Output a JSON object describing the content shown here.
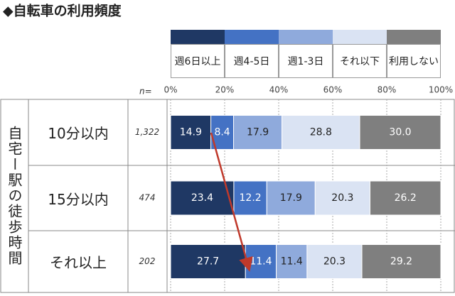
{
  "chart_data": {
    "type": "stacked_barh",
    "title": "◆自転車の利用頻度",
    "axis_group_label": "自宅ー駅の徒歩時間",
    "n_label": "n=",
    "categories": [
      "10分以内",
      "15分以内",
      "それ以上"
    ],
    "sample_sizes": [
      "1,322",
      "474",
      "202"
    ],
    "xlim": [
      0,
      100
    ],
    "xticks": [
      {
        "value": 0,
        "label": "0%"
      },
      {
        "value": 20,
        "label": "20%"
      },
      {
        "value": 40,
        "label": "40%"
      },
      {
        "value": 60,
        "label": "60%"
      },
      {
        "value": 80,
        "label": "80%"
      },
      {
        "value": 100,
        "label": "100%"
      }
    ],
    "grid": true,
    "legend": "top",
    "series": [
      {
        "name": "週6日以上",
        "color": "#1f3864",
        "values": [
          14.9,
          23.4,
          27.7
        ],
        "value_labels": [
          "14.9",
          "23.4",
          "27.7"
        ]
      },
      {
        "name": "週4-5日",
        "color": "#4472c4",
        "values": [
          8.4,
          12.2,
          11.4
        ],
        "value_labels": [
          "8.4",
          "12.2",
          "11.4"
        ]
      },
      {
        "name": "週1-3日",
        "color": "#8faadc",
        "values": [
          17.9,
          17.9,
          11.4
        ],
        "value_labels": [
          "17.9",
          "17.9",
          "11.4"
        ]
      },
      {
        "name": "それ以下",
        "color": "#dae3f3",
        "values": [
          28.8,
          20.3,
          20.3
        ],
        "value_labels": [
          "28.8",
          "20.3",
          "20.3"
        ]
      },
      {
        "name": "利用しない",
        "color": "#7f7f7f",
        "values": [
          30.0,
          26.2,
          29.2
        ],
        "value_labels": [
          "30.0",
          "26.2",
          "29.2"
        ]
      }
    ]
  }
}
